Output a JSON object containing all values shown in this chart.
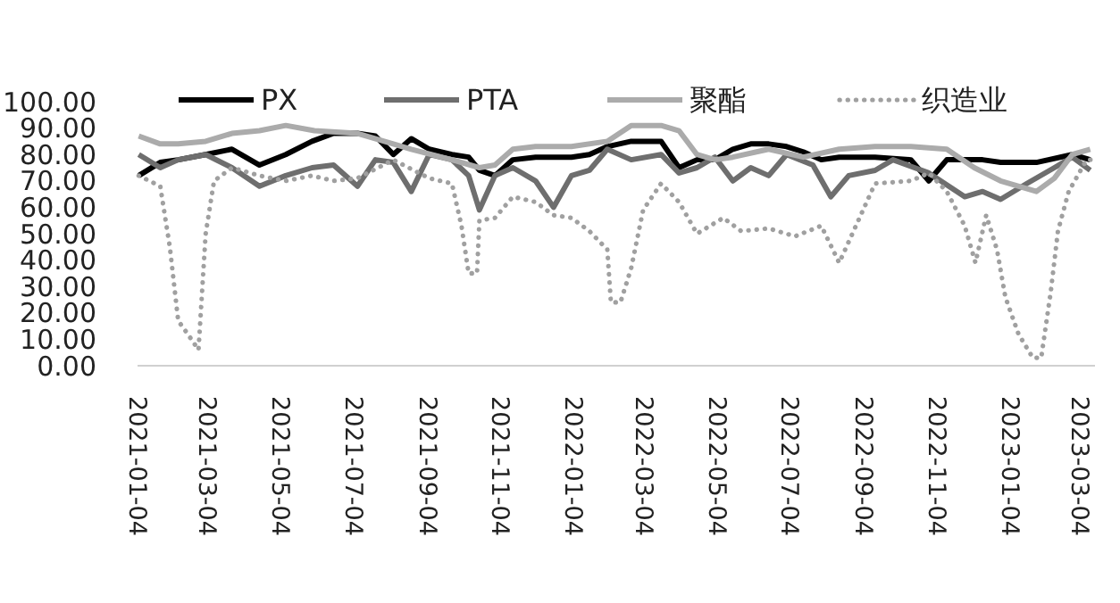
{
  "chart_data": {
    "type": "line",
    "legend": "top",
    "grid": false,
    "marker": "none",
    "xlim": [
      "2021-01-04",
      "2023-03-16"
    ],
    "xticks": [
      "2021-01-04",
      "2021-03-04",
      "2021-05-04",
      "2021-07-04",
      "2021-09-04",
      "2021-11-04",
      "2022-01-04",
      "2022-03-04",
      "2022-05-04",
      "2022-07-04",
      "2022-09-04",
      "2022-11-04",
      "2023-01-04",
      "2023-03-04"
    ],
    "ylim": [
      0,
      100
    ],
    "yticks": [
      {
        "value": 0,
        "label": "0.00"
      },
      {
        "value": 10,
        "label": "10.00"
      },
      {
        "value": 20,
        "label": "20.00"
      },
      {
        "value": 30,
        "label": "30.00"
      },
      {
        "value": 40,
        "label": "40.00"
      },
      {
        "value": 50,
        "label": "50.00"
      },
      {
        "value": 60,
        "label": "60.00"
      },
      {
        "value": 70,
        "label": "70.00"
      },
      {
        "value": 80,
        "label": "80.00"
      },
      {
        "value": 90,
        "label": "90.00"
      },
      {
        "value": 100,
        "label": "100.00"
      }
    ],
    "series": [
      {
        "name": "PX",
        "color": "#000000",
        "line_style": "solid",
        "x": [
          "2021-01-05",
          "2021-01-23",
          "2021-02-07",
          "2021-03-02",
          "2021-03-24",
          "2021-04-16",
          "2021-05-08",
          "2021-05-30",
          "2021-06-17",
          "2021-07-07",
          "2021-07-22",
          "2021-08-06",
          "2021-08-21",
          "2021-09-05",
          "2021-09-24",
          "2021-10-08",
          "2021-10-17",
          "2021-10-30",
          "2021-11-14",
          "2021-12-03",
          "2021-12-18",
          "2022-01-02",
          "2022-01-17",
          "2022-02-01",
          "2022-02-21",
          "2022-03-18",
          "2022-04-02",
          "2022-04-17",
          "2022-05-02",
          "2022-05-17",
          "2022-06-01",
          "2022-06-16",
          "2022-07-01",
          "2022-07-15",
          "2022-07-30",
          "2022-08-14",
          "2022-09-13",
          "2022-10-13",
          "2022-10-28",
          "2022-11-12",
          "2022-12-12",
          "2022-12-27",
          "2023-01-26",
          "2023-02-25",
          "2023-03-12"
        ],
        "values": [
          72,
          77,
          78,
          80,
          82,
          76,
          80,
          85,
          88,
          88,
          87,
          80,
          86,
          82,
          80,
          79,
          74,
          72,
          78,
          79,
          79,
          79,
          80,
          83,
          85,
          85,
          75,
          78,
          78,
          82,
          84,
          84,
          83,
          81,
          78,
          79,
          79,
          78,
          70,
          78,
          78,
          77,
          77,
          80,
          78
        ]
      },
      {
        "name": "PTA",
        "color": "#6e6e6e",
        "line_style": "solid",
        "x": [
          "2021-01-05",
          "2021-01-23",
          "2021-02-07",
          "2021-03-02",
          "2021-03-24",
          "2021-04-16",
          "2021-05-08",
          "2021-05-30",
          "2021-06-17",
          "2021-07-07",
          "2021-07-22",
          "2021-08-06",
          "2021-08-21",
          "2021-09-05",
          "2021-09-24",
          "2021-10-08",
          "2021-10-17",
          "2021-10-30",
          "2021-11-14",
          "2021-12-03",
          "2021-12-18",
          "2022-01-02",
          "2022-01-17",
          "2022-02-01",
          "2022-02-21",
          "2022-03-18",
          "2022-04-02",
          "2022-04-17",
          "2022-05-02",
          "2022-05-17",
          "2022-06-01",
          "2022-06-16",
          "2022-07-01",
          "2022-07-23",
          "2022-08-07",
          "2022-08-22",
          "2022-09-13",
          "2022-09-28",
          "2022-10-28",
          "2022-11-27",
          "2022-12-12",
          "2022-12-27",
          "2023-01-18",
          "2023-02-10",
          "2023-02-25",
          "2023-03-12"
        ],
        "values": [
          80,
          75,
          78,
          80,
          75,
          68,
          72,
          75,
          76,
          68,
          78,
          77,
          66,
          80,
          78,
          72,
          59,
          72,
          75,
          70,
          60,
          72,
          74,
          82,
          78,
          80,
          73,
          75,
          79,
          70,
          75,
          72,
          80,
          76,
          64,
          72,
          74,
          78,
          73,
          64,
          66,
          63,
          69,
          75,
          79,
          74
        ]
      },
      {
        "name": "聚酯",
        "color": "#ababab",
        "line_style": "solid",
        "x": [
          "2021-01-05",
          "2021-01-23",
          "2021-02-07",
          "2021-03-02",
          "2021-03-24",
          "2021-04-16",
          "2021-05-08",
          "2021-06-01",
          "2021-07-07",
          "2021-08-06",
          "2021-08-21",
          "2021-09-24",
          "2021-10-17",
          "2021-10-30",
          "2021-11-14",
          "2021-12-03",
          "2022-01-02",
          "2022-02-01",
          "2022-02-21",
          "2022-03-18",
          "2022-04-02",
          "2022-04-17",
          "2022-05-02",
          "2022-05-17",
          "2022-06-16",
          "2022-07-15",
          "2022-08-14",
          "2022-09-13",
          "2022-10-13",
          "2022-11-12",
          "2022-12-05",
          "2022-12-27",
          "2023-01-26",
          "2023-02-10",
          "2023-02-25",
          "2023-03-12"
        ],
        "values": [
          87,
          84,
          84,
          85,
          88,
          89,
          91,
          89,
          88,
          84,
          82,
          78,
          75,
          76,
          82,
          83,
          83,
          85,
          91,
          91,
          89,
          80,
          78,
          79,
          82,
          79,
          82,
          83,
          83,
          82,
          75,
          70,
          66,
          71,
          80,
          82
        ]
      },
      {
        "name": "织造业",
        "color": "#a0a0a0",
        "line_style": "dotted",
        "x": [
          "2021-01-05",
          "2021-01-23",
          "2021-01-31",
          "2021-02-07",
          "2021-02-15",
          "2021-02-24",
          "2021-03-02",
          "2021-03-09",
          "2021-03-24",
          "2021-04-16",
          "2021-05-08",
          "2021-05-30",
          "2021-06-17",
          "2021-07-07",
          "2021-08-06",
          "2021-09-05",
          "2021-09-24",
          "2021-10-02",
          "2021-10-08",
          "2021-10-15",
          "2021-10-17",
          "2021-10-30",
          "2021-11-14",
          "2021-12-03",
          "2021-12-18",
          "2022-01-02",
          "2022-01-17",
          "2022-02-01",
          "2022-02-04",
          "2022-02-12",
          "2022-02-21",
          "2022-03-03",
          "2022-03-18",
          "2022-04-02",
          "2022-04-17",
          "2022-05-09",
          "2022-05-24",
          "2022-06-16",
          "2022-07-08",
          "2022-07-30",
          "2022-08-14",
          "2022-08-26",
          "2022-09-13",
          "2022-10-13",
          "2022-10-28",
          "2022-11-12",
          "2022-11-27",
          "2022-12-06",
          "2022-12-15",
          "2022-12-24",
          "2022-12-31",
          "2023-01-11",
          "2023-01-23",
          "2023-01-30",
          "2023-02-07",
          "2023-02-13",
          "2023-02-22",
          "2023-03-09",
          "2023-03-15"
        ],
        "values": [
          72,
          68,
          45,
          17,
          12,
          6,
          50,
          70,
          75,
          72,
          70,
          72,
          70,
          71,
          78,
          71,
          69,
          53,
          35,
          35,
          55,
          56,
          64,
          62,
          57,
          56,
          51,
          44,
          24,
          24,
          37,
          59,
          69,
          62,
          50,
          56,
          51,
          52,
          49,
          53,
          39,
          51,
          69,
          70,
          73,
          66,
          53,
          39,
          57,
          44,
          26,
          12,
          3,
          3,
          28,
          51,
          66,
          78,
          78
        ]
      }
    ]
  }
}
